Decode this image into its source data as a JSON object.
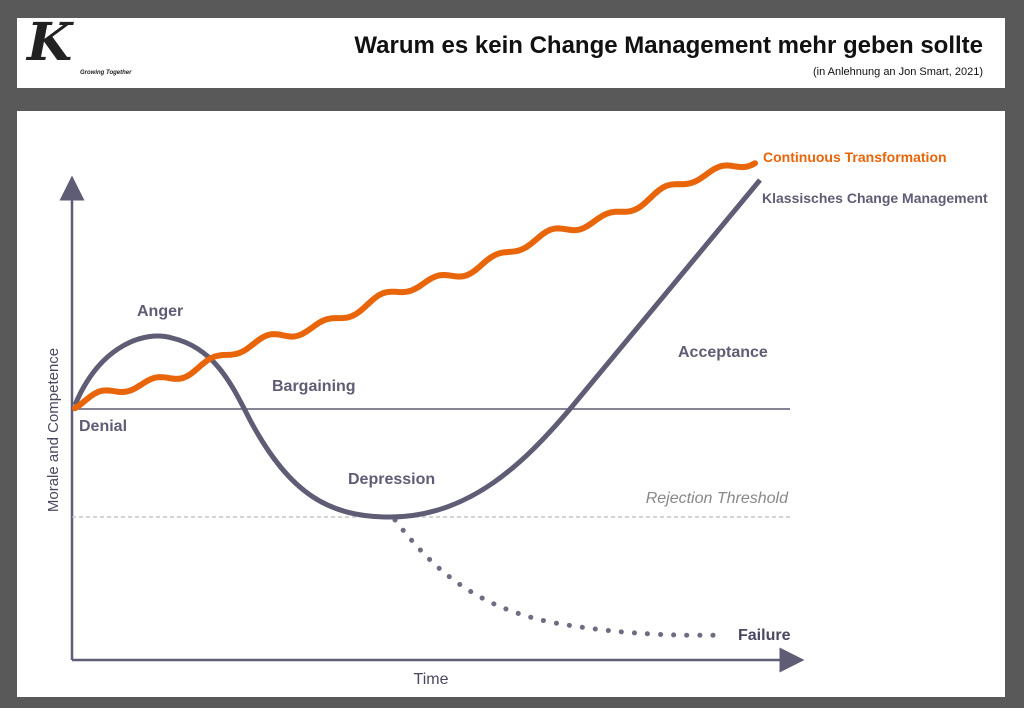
{
  "header": {
    "logo_text": "K",
    "logo_tagline": "Growing Together",
    "title": "Warum es kein Change Management mehr geben sollte",
    "subtitle": "(in Anlehnung an Jon Smart, 2021)"
  },
  "colors": {
    "orange": "#e8650a",
    "curve": "#5f5d75",
    "background": "#595959"
  },
  "chart_data": {
    "type": "line",
    "xlabel": "Time",
    "ylabel": "Morale and Competence",
    "series": [
      {
        "name": "Continuous Transformation",
        "color": "#e8650a",
        "trend": "steadily rising"
      },
      {
        "name": "Klassisches Change Management",
        "color": "#5f5d75",
        "phases": [
          "Denial",
          "Anger",
          "Bargaining",
          "Depression",
          "Acceptance"
        ]
      }
    ],
    "annotations": {
      "threshold": "Rejection Threshold",
      "failure": "Failure"
    },
    "phase_labels": {
      "denial": "Denial",
      "anger": "Anger",
      "bargaining": "Bargaining",
      "depression": "Depression",
      "acceptance": "Acceptance"
    }
  }
}
